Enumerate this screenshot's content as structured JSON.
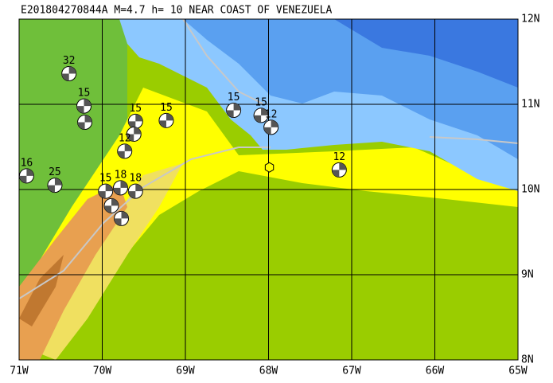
{
  "title": "E201804270844A  M=4.7  h= 10 NEAR COAST OF VENEZUELA",
  "map": {
    "xlim": [
      -71,
      -65
    ],
    "ylim": [
      8,
      12
    ],
    "xticks": [
      {
        "value": -71,
        "label": "71W"
      },
      {
        "value": -70,
        "label": "70W"
      },
      {
        "value": -69,
        "label": "69W"
      },
      {
        "value": -68,
        "label": "68W"
      },
      {
        "value": -67,
        "label": "67W"
      },
      {
        "value": -66,
        "label": "66W"
      },
      {
        "value": -65,
        "label": "65W"
      }
    ],
    "yticks": [
      {
        "value": 8,
        "label": "8N"
      },
      {
        "value": 9,
        "label": "9N"
      },
      {
        "value": 10,
        "label": "10N"
      },
      {
        "value": 11,
        "label": "11N"
      },
      {
        "value": 12,
        "label": "12N"
      }
    ],
    "epicenter": {
      "lon": -67.99,
      "lat": 10.26
    },
    "events": [
      {
        "depth": "32",
        "lon": -70.4,
        "lat": 11.36
      },
      {
        "depth": "15",
        "lon": -70.22,
        "lat": 10.98
      },
      {
        "depth": null,
        "lon": -70.21,
        "lat": 10.79
      },
      {
        "depth": "15",
        "lon": -69.6,
        "lat": 10.8
      },
      {
        "depth": null,
        "lon": -69.62,
        "lat": 10.65
      },
      {
        "depth": "15",
        "lon": -69.23,
        "lat": 10.81
      },
      {
        "depth": "12",
        "lon": -69.73,
        "lat": 10.45
      },
      {
        "depth": "16",
        "lon": -70.91,
        "lat": 10.16
      },
      {
        "depth": "25",
        "lon": -70.57,
        "lat": 10.05
      },
      {
        "depth": "15",
        "lon": -69.96,
        "lat": 9.98
      },
      {
        "depth": "18",
        "lon": -69.78,
        "lat": 10.02
      },
      {
        "depth": "18",
        "lon": -69.6,
        "lat": 9.98
      },
      {
        "depth": null,
        "lon": -69.89,
        "lat": 9.81
      },
      {
        "depth": null,
        "lon": -69.77,
        "lat": 9.66
      },
      {
        "depth": "15",
        "lon": -68.42,
        "lat": 10.93
      },
      {
        "depth": "15",
        "lon": -68.09,
        "lat": 10.87
      },
      {
        "depth": "12",
        "lon": -67.97,
        "lat": 10.73
      },
      {
        "depth": "12",
        "lon": -67.15,
        "lat": 10.23
      }
    ]
  }
}
